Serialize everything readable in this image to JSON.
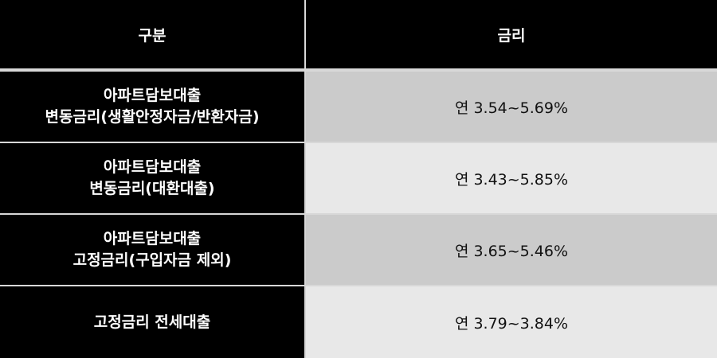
{
  "headers": [
    "구분",
    "금리"
  ],
  "rows": [
    {
      "category_line1": "아파트담보대출",
      "category_line2": "변동금리(생활안정자금/반환자금)",
      "rate": "연 3.54~5.69%"
    },
    {
      "category_line1": "아파트담보대출",
      "category_line2": "변동금리(대환대출)",
      "rate": "연 3.43~5.85%"
    },
    {
      "category_line1": "아파트담보대출",
      "category_line2": "고정금리(구입자금 제외)",
      "rate": "연 3.65~5.46%"
    },
    {
      "category_line1": "고정금리 전세대출",
      "category_line2": "",
      "rate": "연 3.79~3.84%"
    }
  ],
  "colors": {
    "header_bg": "#000000",
    "row_dark": "#cbcbcb",
    "row_light": "#e8e8e8"
  }
}
